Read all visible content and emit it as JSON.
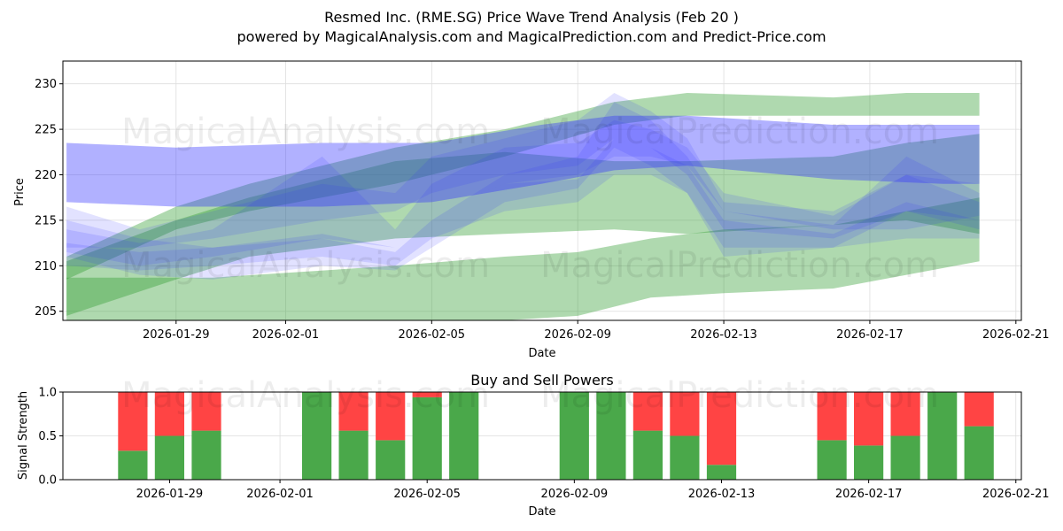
{
  "title_line1": "Resmed Inc. (RME.SG) Price Wave Trend Analysis (Feb 20 )",
  "title_line2": "powered by MagicalAnalysis.com and MagicalPrediction.com and Predict-Price.com",
  "watermarks": [
    "MagicalAnalysis.com",
    "MagicalPrediction.com"
  ],
  "chart_data": [
    {
      "type": "area",
      "title": "Resmed Inc. (RME.SG) Price Wave Trend Analysis (Feb 20 )",
      "xlabel": "Date",
      "ylabel": "Price",
      "xlim": [
        "2026-01-26",
        "2026-02-21"
      ],
      "ylim": [
        204,
        232.5
      ],
      "grid": true,
      "x_ticks": [
        "2026-01-29",
        "2026-02-01",
        "2026-02-05",
        "2026-02-09",
        "2026-02-13",
        "2026-02-17",
        "2026-02-21"
      ],
      "y_ticks": [
        205,
        210,
        215,
        220,
        225,
        230
      ],
      "colors": {
        "green": "#2e9b2e",
        "blue": "#3333ff"
      },
      "green_bands": [
        {
          "name": "upper",
          "x": [
            "2026-01-26",
            "2026-01-29",
            "2026-01-31",
            "2026-02-04",
            "2026-02-07",
            "2026-02-10",
            "2026-02-12",
            "2026-02-16",
            "2026-02-18",
            "2026-02-20"
          ],
          "lower": [
            208.5,
            214,
            216,
            219,
            222,
            225.5,
            226.5,
            226.5,
            226.5,
            226.5
          ],
          "upper": [
            211,
            216.5,
            219,
            223,
            225,
            228,
            229,
            228.5,
            229,
            229
          ]
        },
        {
          "name": "middle",
          "x": [
            "2026-01-26",
            "2026-01-29",
            "2026-01-31",
            "2026-02-04",
            "2026-02-07",
            "2026-02-10",
            "2026-02-12",
            "2026-02-16",
            "2026-02-18",
            "2026-02-20"
          ],
          "lower": [
            204.5,
            208.5,
            211,
            213,
            213.5,
            214,
            213.5,
            214.5,
            215,
            213.5
          ],
          "upper": [
            210.5,
            215,
            217.5,
            221.5,
            222.5,
            221.5,
            221.5,
            222,
            223.5,
            224.5
          ]
        },
        {
          "name": "lower",
          "x": [
            "2026-01-26",
            "2026-01-30",
            "2026-02-04",
            "2026-02-07",
            "2026-02-09",
            "2026-02-11",
            "2026-02-13",
            "2026-02-16",
            "2026-02-18",
            "2026-02-20"
          ],
          "lower": [
            203,
            203,
            203,
            204,
            204.5,
            206.5,
            207,
            207.5,
            209,
            210.5
          ],
          "upper": [
            208.7,
            208.7,
            210,
            211,
            211.5,
            213,
            214,
            214.5,
            216,
            217.5
          ]
        }
      ],
      "blue_bands": [
        {
          "x": [
            "2026-01-26",
            "2026-01-29",
            "2026-02-02",
            "2026-02-05",
            "2026-02-08",
            "2026-02-10",
            "2026-02-12",
            "2026-02-16",
            "2026-02-19",
            "2026-02-20"
          ],
          "lower": [
            217,
            216.5,
            216.5,
            217,
            219,
            220.5,
            221,
            219.5,
            219,
            219
          ],
          "upper": [
            223.5,
            223,
            223.5,
            223.5,
            225.5,
            226.5,
            226.5,
            225.5,
            225.5,
            225.5
          ]
        },
        {
          "x": [
            "2026-01-26",
            "2026-01-28",
            "2026-01-30",
            "2026-02-02",
            "2026-02-04",
            "2026-02-05",
            "2026-02-07",
            "2026-02-09",
            "2026-02-10",
            "2026-02-11",
            "2026-02-12",
            "2026-02-13",
            "2026-02-16",
            "2026-02-18",
            "2026-02-20"
          ],
          "lower": [
            211,
            209,
            208.5,
            210,
            209.5,
            212,
            217,
            218.5,
            223,
            221,
            218,
            211,
            212,
            216,
            214
          ],
          "upper": [
            215,
            213,
            212,
            213,
            211.5,
            215,
            220,
            222,
            228,
            226,
            222,
            216,
            214.5,
            222,
            218
          ]
        },
        {
          "x": [
            "2026-01-26",
            "2026-01-28",
            "2026-01-30",
            "2026-02-02",
            "2026-02-04",
            "2026-02-05",
            "2026-02-07",
            "2026-02-09",
            "2026-02-10",
            "2026-02-11",
            "2026-02-12",
            "2026-02-13",
            "2026-02-16",
            "2026-02-18",
            "2026-02-20"
          ],
          "lower": [
            212,
            212,
            213,
            215,
            216,
            218,
            220,
            221,
            224,
            223,
            220,
            214,
            213,
            216,
            215
          ],
          "upper": [
            216.5,
            214,
            216,
            219,
            218,
            222,
            224,
            226,
            229,
            227,
            224,
            217,
            216,
            220,
            217
          ]
        },
        {
          "x": [
            "2026-01-26",
            "2026-01-28",
            "2026-01-30",
            "2026-02-02",
            "2026-02-04",
            "2026-02-05",
            "2026-02-07",
            "2026-02-09",
            "2026-02-10",
            "2026-02-11",
            "2026-02-12",
            "2026-02-13",
            "2026-02-16",
            "2026-02-18",
            "2026-02-20"
          ],
          "lower": [
            211.5,
            210,
            211,
            213,
            212,
            216,
            219,
            220,
            222,
            222,
            221,
            216,
            214,
            214,
            215.5
          ],
          "upper": [
            214,
            212.5,
            214,
            222,
            214,
            219,
            223,
            223.5,
            226,
            225,
            223,
            218,
            215.5,
            220,
            219
          ]
        },
        {
          "x": [
            "2026-01-26",
            "2026-01-28",
            "2026-01-30",
            "2026-02-02",
            "2026-02-04",
            "2026-02-05",
            "2026-02-07",
            "2026-02-09",
            "2026-02-10",
            "2026-02-11",
            "2026-02-12",
            "2026-02-13",
            "2026-02-16",
            "2026-02-18",
            "2026-02-20"
          ],
          "lower": [
            210,
            209.5,
            210,
            211,
            210,
            213,
            216,
            217,
            220,
            220,
            218,
            212,
            212,
            213,
            213
          ],
          "upper": [
            212.5,
            211.5,
            212,
            213.5,
            212,
            216,
            219,
            219.5,
            224,
            223,
            221,
            215,
            213.5,
            217,
            215
          ]
        }
      ]
    },
    {
      "type": "bar",
      "title": "Buy and Sell Powers",
      "xlabel": "Date",
      "ylabel": "Signal Strength",
      "ylim": [
        0,
        1
      ],
      "xlim": [
        "2026-01-26",
        "2026-02-21"
      ],
      "grid": true,
      "x_ticks": [
        "2026-01-29",
        "2026-02-01",
        "2026-02-05",
        "2026-02-09",
        "2026-02-13",
        "2026-02-17",
        "2026-02-21"
      ],
      "y_ticks": [
        "0.0",
        "0.5",
        "1.0"
      ],
      "colors": {
        "buy": "#4aa84a",
        "sell": "#ff4444"
      },
      "series": [
        {
          "name": "Buy",
          "dates": [
            "2026-01-28",
            "2026-01-29",
            "2026-01-30",
            "2026-02-02",
            "2026-02-03",
            "2026-02-04",
            "2026-02-05",
            "2026-02-06",
            "2026-02-09",
            "2026-02-10",
            "2026-02-11",
            "2026-02-12",
            "2026-02-13",
            "2026-02-16",
            "2026-02-17",
            "2026-02-18",
            "2026-02-19",
            "2026-02-20"
          ],
          "values": [
            0.33,
            0.5,
            0.56,
            1.0,
            0.56,
            0.45,
            0.94,
            1.0,
            1.0,
            1.0,
            0.56,
            0.5,
            0.17,
            0.45,
            0.39,
            0.5,
            1.0,
            0.61
          ]
        },
        {
          "name": "Sell",
          "dates": [
            "2026-01-28",
            "2026-01-29",
            "2026-01-30",
            "2026-02-02",
            "2026-02-03",
            "2026-02-04",
            "2026-02-05",
            "2026-02-06",
            "2026-02-09",
            "2026-02-10",
            "2026-02-11",
            "2026-02-12",
            "2026-02-13",
            "2026-02-16",
            "2026-02-17",
            "2026-02-18",
            "2026-02-19",
            "2026-02-20"
          ],
          "values": [
            0.67,
            0.5,
            0.44,
            0.0,
            0.44,
            0.55,
            0.06,
            0.0,
            0.0,
            0.0,
            0.44,
            0.5,
            0.83,
            0.55,
            0.61,
            0.5,
            0.0,
            0.39
          ]
        }
      ]
    }
  ]
}
